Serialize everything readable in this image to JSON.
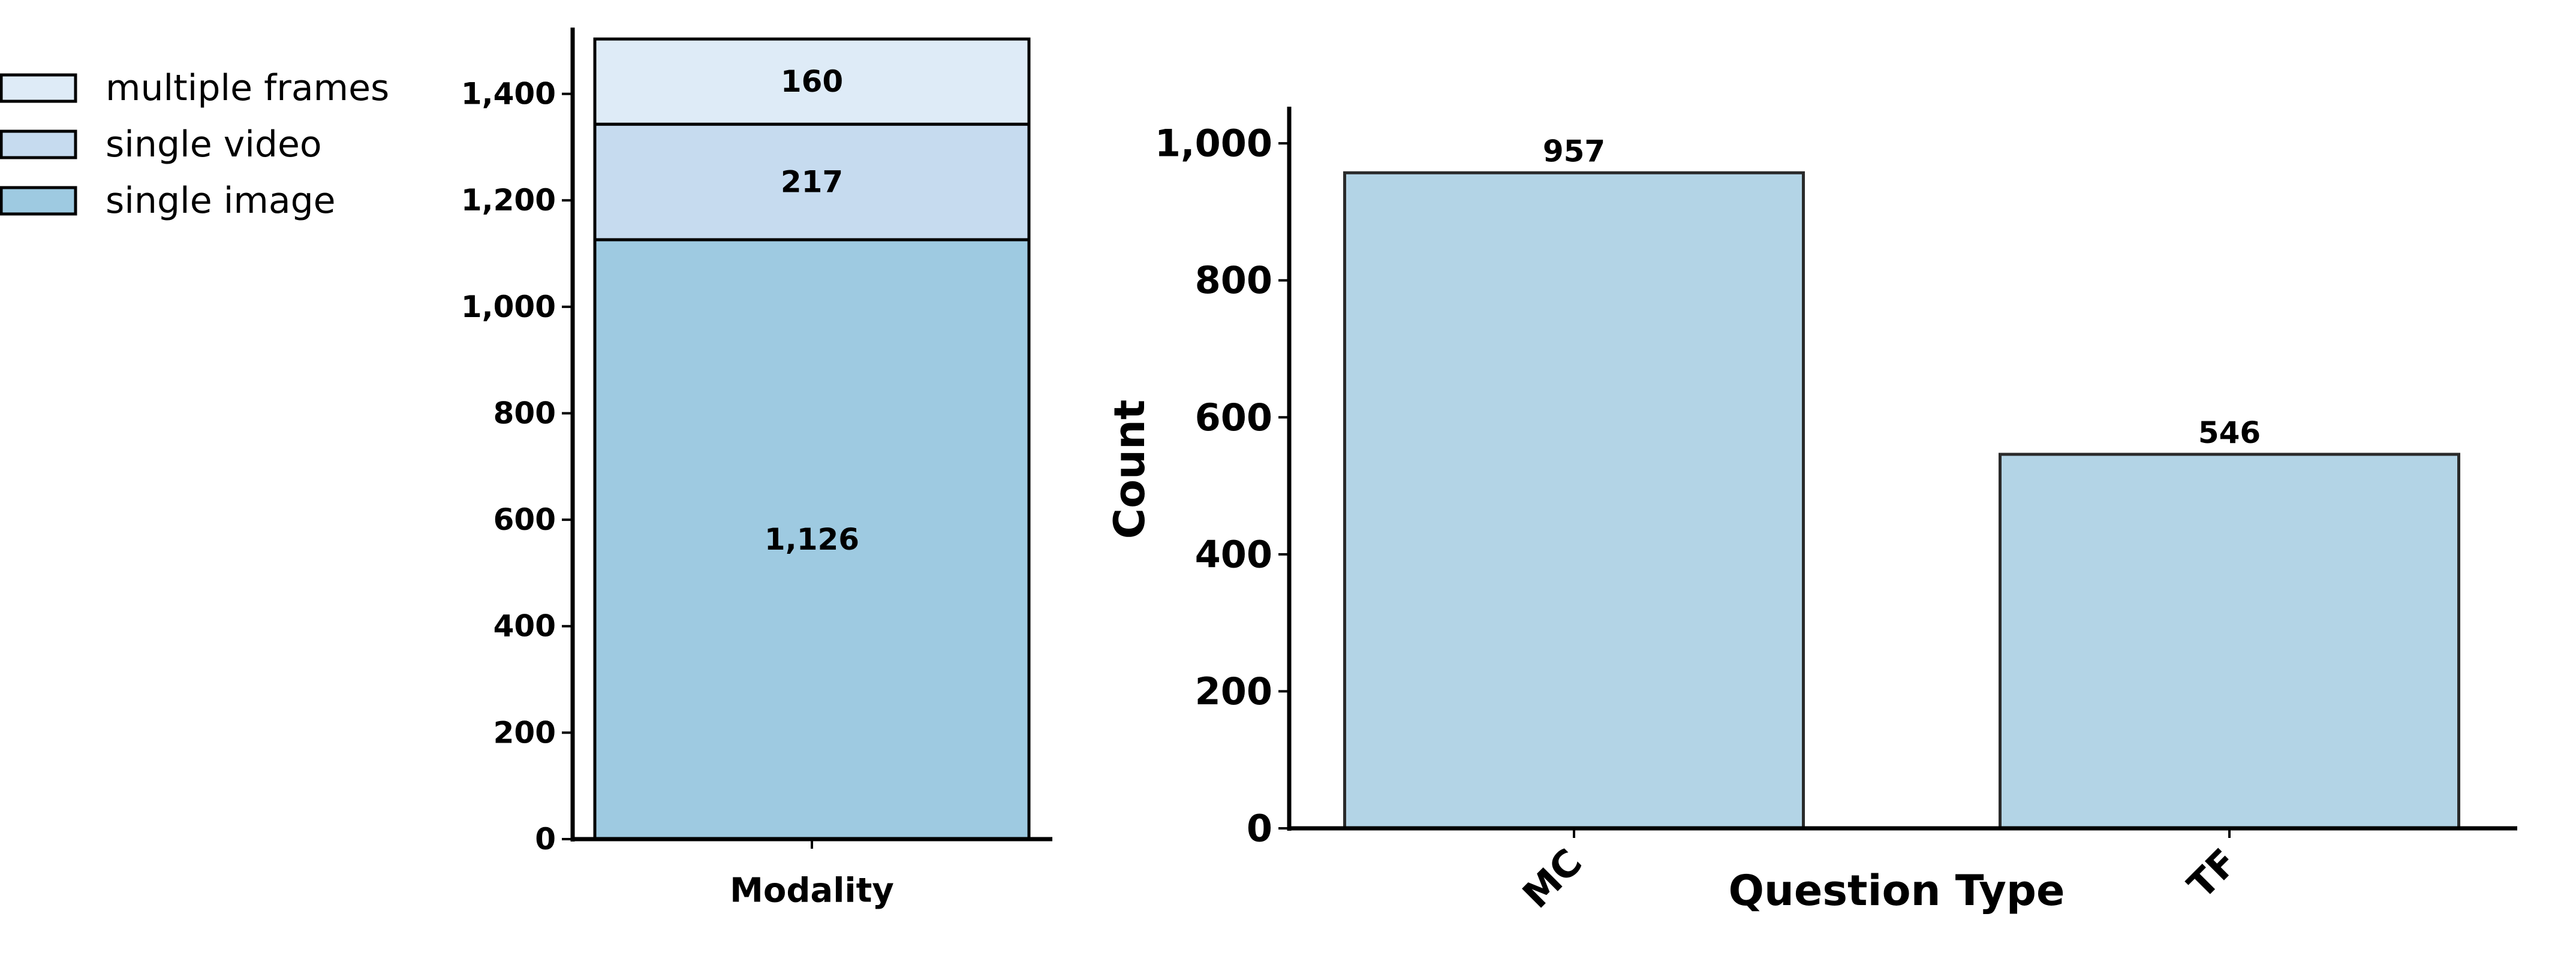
{
  "chart_data": [
    {
      "type": "bar",
      "stacked": true,
      "categories": [
        "Modality"
      ],
      "series": [
        {
          "name": "single image",
          "values": [
            1126
          ],
          "label": "1,126",
          "color": "#9ecae1"
        },
        {
          "name": "single video",
          "values": [
            217
          ],
          "label": "217",
          "color": "#c6dbef"
        },
        {
          "name": "multiple frames",
          "values": [
            160
          ],
          "label": "160",
          "color": "#deebf7"
        }
      ],
      "legend": {
        "placement": "left",
        "entries": [
          "multiple frames",
          "single video",
          "single image"
        ]
      },
      "xlabel": "",
      "ylabel": "",
      "ylim": [
        0,
        1520
      ],
      "yticks": [
        0,
        200,
        400,
        600,
        800,
        1000,
        1200,
        1400
      ],
      "ytick_labels": [
        "0",
        "200",
        "400",
        "600",
        "800",
        "1,000",
        "1,200",
        "1,400"
      ],
      "grid": false
    },
    {
      "type": "bar",
      "categories": [
        "MC",
        "TF"
      ],
      "values": [
        957,
        546
      ],
      "value_labels": [
        "957",
        "546"
      ],
      "color": "#b3d4e6",
      "xlabel": "Question Type",
      "ylabel": "Count",
      "ylim": [
        0,
        1050
      ],
      "yticks": [
        0,
        200,
        400,
        600,
        800,
        1000
      ],
      "ytick_labels": [
        "0",
        "200",
        "400",
        "600",
        "800",
        "1,000"
      ],
      "grid": false
    }
  ]
}
